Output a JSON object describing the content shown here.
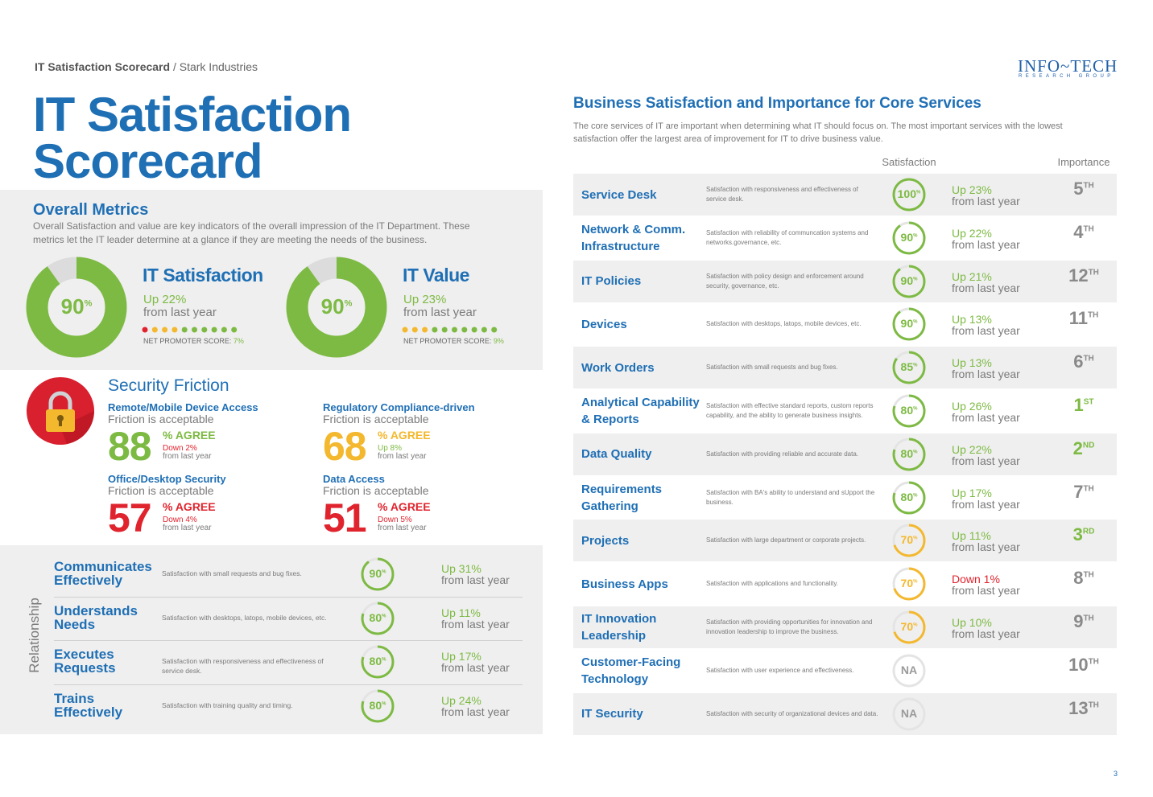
{
  "header": {
    "breadcrumb_title": "IT Satisfaction Scorecard",
    "breadcrumb_separator": "/",
    "breadcrumb_company": "Stark Industries",
    "title_lines": [
      "IT Satisfaction",
      "Scorecard"
    ]
  },
  "logo": {
    "name": "INFO~TECH",
    "tagline": "RESEARCH GROUP"
  },
  "overall_metrics": {
    "title": "Overall Metrics",
    "description": "Overall Satisfaction and value are key indicators of the overall impression of the IT Department. These metrics let the IT leader determine at a glance if they are meeting the needs of the business.",
    "metrics": [
      {
        "name": "IT Satisfaction",
        "score": 90,
        "score_unit": "%",
        "color": "#7dba43",
        "change": "Up 22%",
        "change_note": "from last year",
        "nps_dots": [
          "#e0242e",
          "#f4b82e",
          "#f4b82e",
          "#f4b82e",
          "#7dba43",
          "#7dba43",
          "#7dba43",
          "#7dba43",
          "#7dba43",
          "#7dba43"
        ],
        "nps_label": "NET PROMOTER SCORE:",
        "nps_value": "7%"
      },
      {
        "name": "IT Value",
        "score": 90,
        "score_unit": "%",
        "color": "#7dba43",
        "change": "Up 23%",
        "change_note": "from last year",
        "nps_dots": [
          "#f4b82e",
          "#f4b82e",
          "#f4b82e",
          "#7dba43",
          "#7dba43",
          "#7dba43",
          "#7dba43",
          "#7dba43",
          "#7dba43",
          "#7dba43"
        ],
        "nps_label": "NET PROMOTER SCORE:",
        "nps_value": "9%"
      }
    ]
  },
  "security_friction": {
    "title": "Security Friction",
    "items": [
      {
        "name": "Remote/Mobile Device Access",
        "subtitle": "Friction is acceptable",
        "value": 88,
        "unit": "% AGREE",
        "color": "#7dba43",
        "change": "Down 2%",
        "change_color": "#e0242e",
        "change_note": "from last year"
      },
      {
        "name": "Regulatory Compliance-driven",
        "subtitle": "Friction is acceptable",
        "value": 68,
        "unit": "% AGREE",
        "color": "#f4b82e",
        "change": "Up 8%",
        "change_color": "#7dba43",
        "change_note": "from last year"
      },
      {
        "name": "Office/Desktop Security",
        "subtitle": "Friction is acceptable",
        "value": 57,
        "unit": "% AGREE",
        "color": "#e0242e",
        "change": "Down 4%",
        "change_color": "#e0242e",
        "change_note": "from last year"
      },
      {
        "name": "Data Access",
        "subtitle": "Friction is acceptable",
        "value": 51,
        "unit": "% AGREE",
        "color": "#e0242e",
        "change": "Down 5%",
        "change_color": "#e0242e",
        "change_note": "from last year"
      }
    ]
  },
  "relationship": {
    "label": "Relationship",
    "rows": [
      {
        "name": "Communicates Effectively",
        "description": "Satisfaction with small requests and bug fixes.",
        "score": 90,
        "score_unit": "%",
        "color": "#7dba43",
        "change": "Up 31%",
        "change_color": "#7dba43",
        "change_note": "from last year"
      },
      {
        "name": "Understands Needs",
        "description": "Satisfaction with desktops, latops, mobile devices, etc.",
        "score": 80,
        "score_unit": "%",
        "color": "#7dba43",
        "change": "Up 11%",
        "change_color": "#7dba43",
        "change_note": "from last year"
      },
      {
        "name": "Executes Requests",
        "description": "Satisfaction with responsiveness and effectiveness of service desk.",
        "score": 80,
        "score_unit": "%",
        "color": "#7dba43",
        "change": "Up 17%",
        "change_color": "#7dba43",
        "change_note": "from last year"
      },
      {
        "name": "Trains Effectively",
        "description": "Satisfaction with training quality and timing.",
        "score": 80,
        "score_unit": "%",
        "color": "#7dba43",
        "change": "Up 24%",
        "change_color": "#7dba43",
        "change_note": "from last year"
      }
    ]
  },
  "core_services": {
    "title": "Business Satisfaction and Importance for Core Services",
    "description": "The core services of IT are important when determining what IT should focus on. The most important services with the lowest satisfaction offer the largest area of improvement for IT to drive business value.",
    "columns": {
      "satisfaction": "Satisfaction",
      "importance": "Importance"
    },
    "rows": [
      {
        "name": "Service Desk",
        "description": "Satisfaction with responsiveness and effectiveness of service desk.",
        "score": 100,
        "score_unit": "%",
        "color": "#7dba43",
        "change": "Up 23%",
        "change_color": "#7dba43",
        "change_note": "from last year",
        "importance": 5,
        "importance_suffix": "TH",
        "importance_color": "#8a8a8a"
      },
      {
        "name": "Network & Comm. Infrastructure",
        "description": "Satisfaction with reliability of communcation systems and networks.governance, etc.",
        "score": 90,
        "score_unit": "%",
        "color": "#7dba43",
        "change": "Up 22%",
        "change_color": "#7dba43",
        "change_note": "from last year",
        "importance": 4,
        "importance_suffix": "TH",
        "importance_color": "#8a8a8a"
      },
      {
        "name": "IT Policies",
        "description": "Satisfaction with policy design and enforcement around security, governance, etc.",
        "score": 90,
        "score_unit": "%",
        "color": "#7dba43",
        "change": "Up 21%",
        "change_color": "#7dba43",
        "change_note": "from last year",
        "importance": 12,
        "importance_suffix": "TH",
        "importance_color": "#8a8a8a"
      },
      {
        "name": "Devices",
        "description": "Satisfaction with desktops, latops, mobile devices, etc.",
        "score": 90,
        "score_unit": "%",
        "color": "#7dba43",
        "change": "Up 13%",
        "change_color": "#7dba43",
        "change_note": "from last year",
        "importance": 11,
        "importance_suffix": "TH",
        "importance_color": "#8a8a8a"
      },
      {
        "name": "Work Orders",
        "description": "Satisfaction with small requests and bug fixes.",
        "score": 85,
        "score_unit": "%",
        "color": "#7dba43",
        "change": "Up 13%",
        "change_color": "#7dba43",
        "change_note": "from last year",
        "importance": 6,
        "importance_suffix": "TH",
        "importance_color": "#8a8a8a"
      },
      {
        "name": "Analytical Capability & Reports",
        "description": "Satisfaction with effective standard reports, custom reports capability, and the ability to generate business insights.",
        "score": 80,
        "score_unit": "%",
        "color": "#7dba43",
        "change": "Up 26%",
        "change_color": "#7dba43",
        "change_note": "from last year",
        "importance": 1,
        "importance_suffix": "ST",
        "importance_color": "#7dba43"
      },
      {
        "name": "Data Quality",
        "description": "Satisfaction with providing reliable and accurate data.",
        "score": 80,
        "score_unit": "%",
        "color": "#7dba43",
        "change": "Up 22%",
        "change_color": "#7dba43",
        "change_note": "from last year",
        "importance": 2,
        "importance_suffix": "ND",
        "importance_color": "#7dba43"
      },
      {
        "name": "Requirements Gathering",
        "description": "Satisfaction with BA's ability to understand and sUpport the business.",
        "score": 80,
        "score_unit": "%",
        "color": "#7dba43",
        "change": "Up 17%",
        "change_color": "#7dba43",
        "change_note": "from last year",
        "importance": 7,
        "importance_suffix": "TH",
        "importance_color": "#8a8a8a"
      },
      {
        "name": "Projects",
        "description": "Satisfaction with large department or corporate projects.",
        "score": 70,
        "score_unit": "%",
        "color": "#f4b82e",
        "change": "Up 11%",
        "change_color": "#7dba43",
        "change_note": "from last year",
        "importance": 3,
        "importance_suffix": "RD",
        "importance_color": "#7dba43"
      },
      {
        "name": "Business Apps",
        "description": "Satisfaction with applications and functionality.",
        "score": 70,
        "score_unit": "%",
        "color": "#f4b82e",
        "change": "Down 1%",
        "change_color": "#e0242e",
        "change_note": "from last year",
        "importance": 8,
        "importance_suffix": "TH",
        "importance_color": "#8a8a8a"
      },
      {
        "name": "IT Innovation Leadership",
        "description": "Satisfaction with providing opportunities for innovation and innovation leadership to improve the business.",
        "score": 70,
        "score_unit": "%",
        "color": "#f4b82e",
        "change": "Up 10%",
        "change_color": "#7dba43",
        "change_note": "from last year",
        "importance": 9,
        "importance_suffix": "TH",
        "importance_color": "#8a8a8a"
      },
      {
        "name": "Customer-Facing Technology",
        "description": "Satisfaction with user experience and effectiveness.",
        "score": "NA",
        "color": "#bdbdbd",
        "importance": 10,
        "importance_suffix": "TH",
        "importance_color": "#8a8a8a"
      },
      {
        "name": "IT Security",
        "description": "Satisfaction with security of organizational devices and data.",
        "score": "NA",
        "color": "#bdbdbd",
        "importance": 13,
        "importance_suffix": "TH",
        "importance_color": "#8a8a8a"
      }
    ]
  },
  "page_number": 3
}
